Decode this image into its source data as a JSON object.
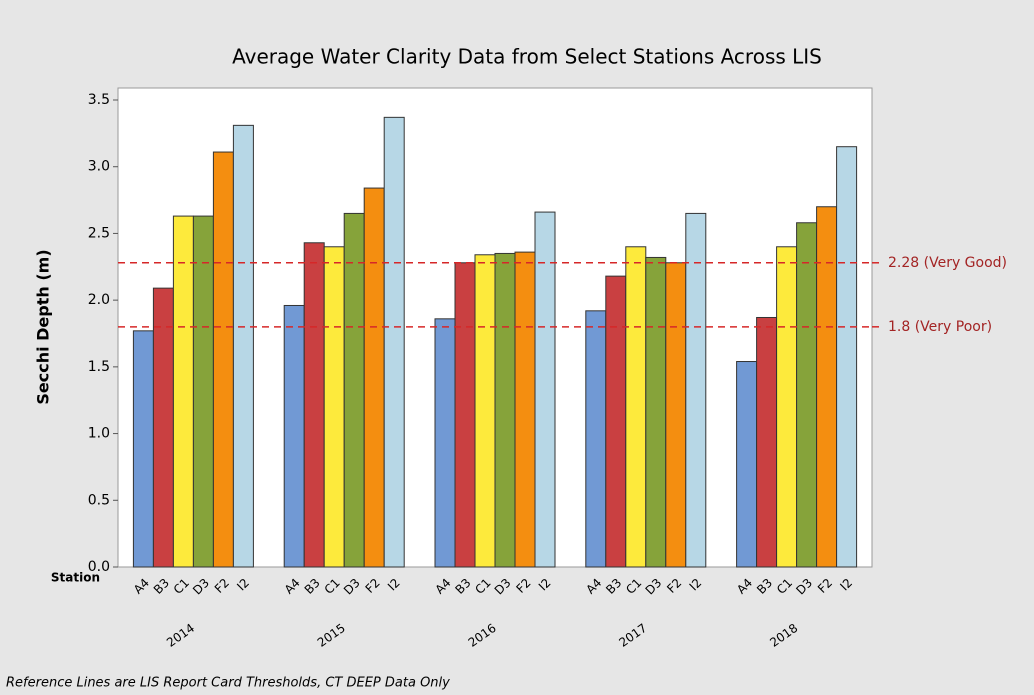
{
  "chart_data": {
    "type": "bar",
    "title": "Average Water Clarity Data from Select Stations Across LIS",
    "y_label": "Secchi Depth (m)",
    "group_label": "Station",
    "footnote": "Reference Lines are LIS Report Card Thresholds, CT DEEP Data Only",
    "categories": [
      "2014",
      "2015",
      "2016",
      "2017",
      "2018"
    ],
    "series": [
      {
        "name": "A4",
        "color": "#7199d4",
        "values": [
          1.77,
          1.96,
          1.86,
          1.92,
          1.54
        ]
      },
      {
        "name": "B3",
        "color": "#c94041",
        "values": [
          2.09,
          2.43,
          2.28,
          2.18,
          1.87
        ]
      },
      {
        "name": "C1",
        "color": "#fdea3c",
        "values": [
          2.63,
          2.4,
          2.34,
          2.4,
          2.4
        ]
      },
      {
        "name": "D3",
        "color": "#86a33a",
        "values": [
          2.63,
          2.65,
          2.35,
          2.32,
          2.58
        ]
      },
      {
        "name": "F2",
        "color": "#f48e10",
        "values": [
          3.11,
          2.84,
          2.36,
          2.28,
          2.7
        ]
      },
      {
        "name": "I2",
        "color": "#b7d7e6",
        "values": [
          3.31,
          3.37,
          2.66,
          2.65,
          3.15
        ]
      }
    ],
    "reference_lines": [
      {
        "value": 2.28,
        "label": "2.28 (Very Good)",
        "color": "#d62728"
      },
      {
        "value": 1.8,
        "label": "1.8 (Very Poor)",
        "color": "#d62728"
      }
    ],
    "ylim": [
      0,
      3.5
    ],
    "yticks": [
      {
        "value": 0,
        "label": "0.0"
      },
      0.5,
      {
        "value": 1,
        "label": "1.0"
      },
      1.5,
      {
        "value": 2,
        "label": "2.0"
      },
      2.5,
      {
        "value": 3,
        "label": "3.0"
      },
      3.5
    ],
    "grid": false
  }
}
